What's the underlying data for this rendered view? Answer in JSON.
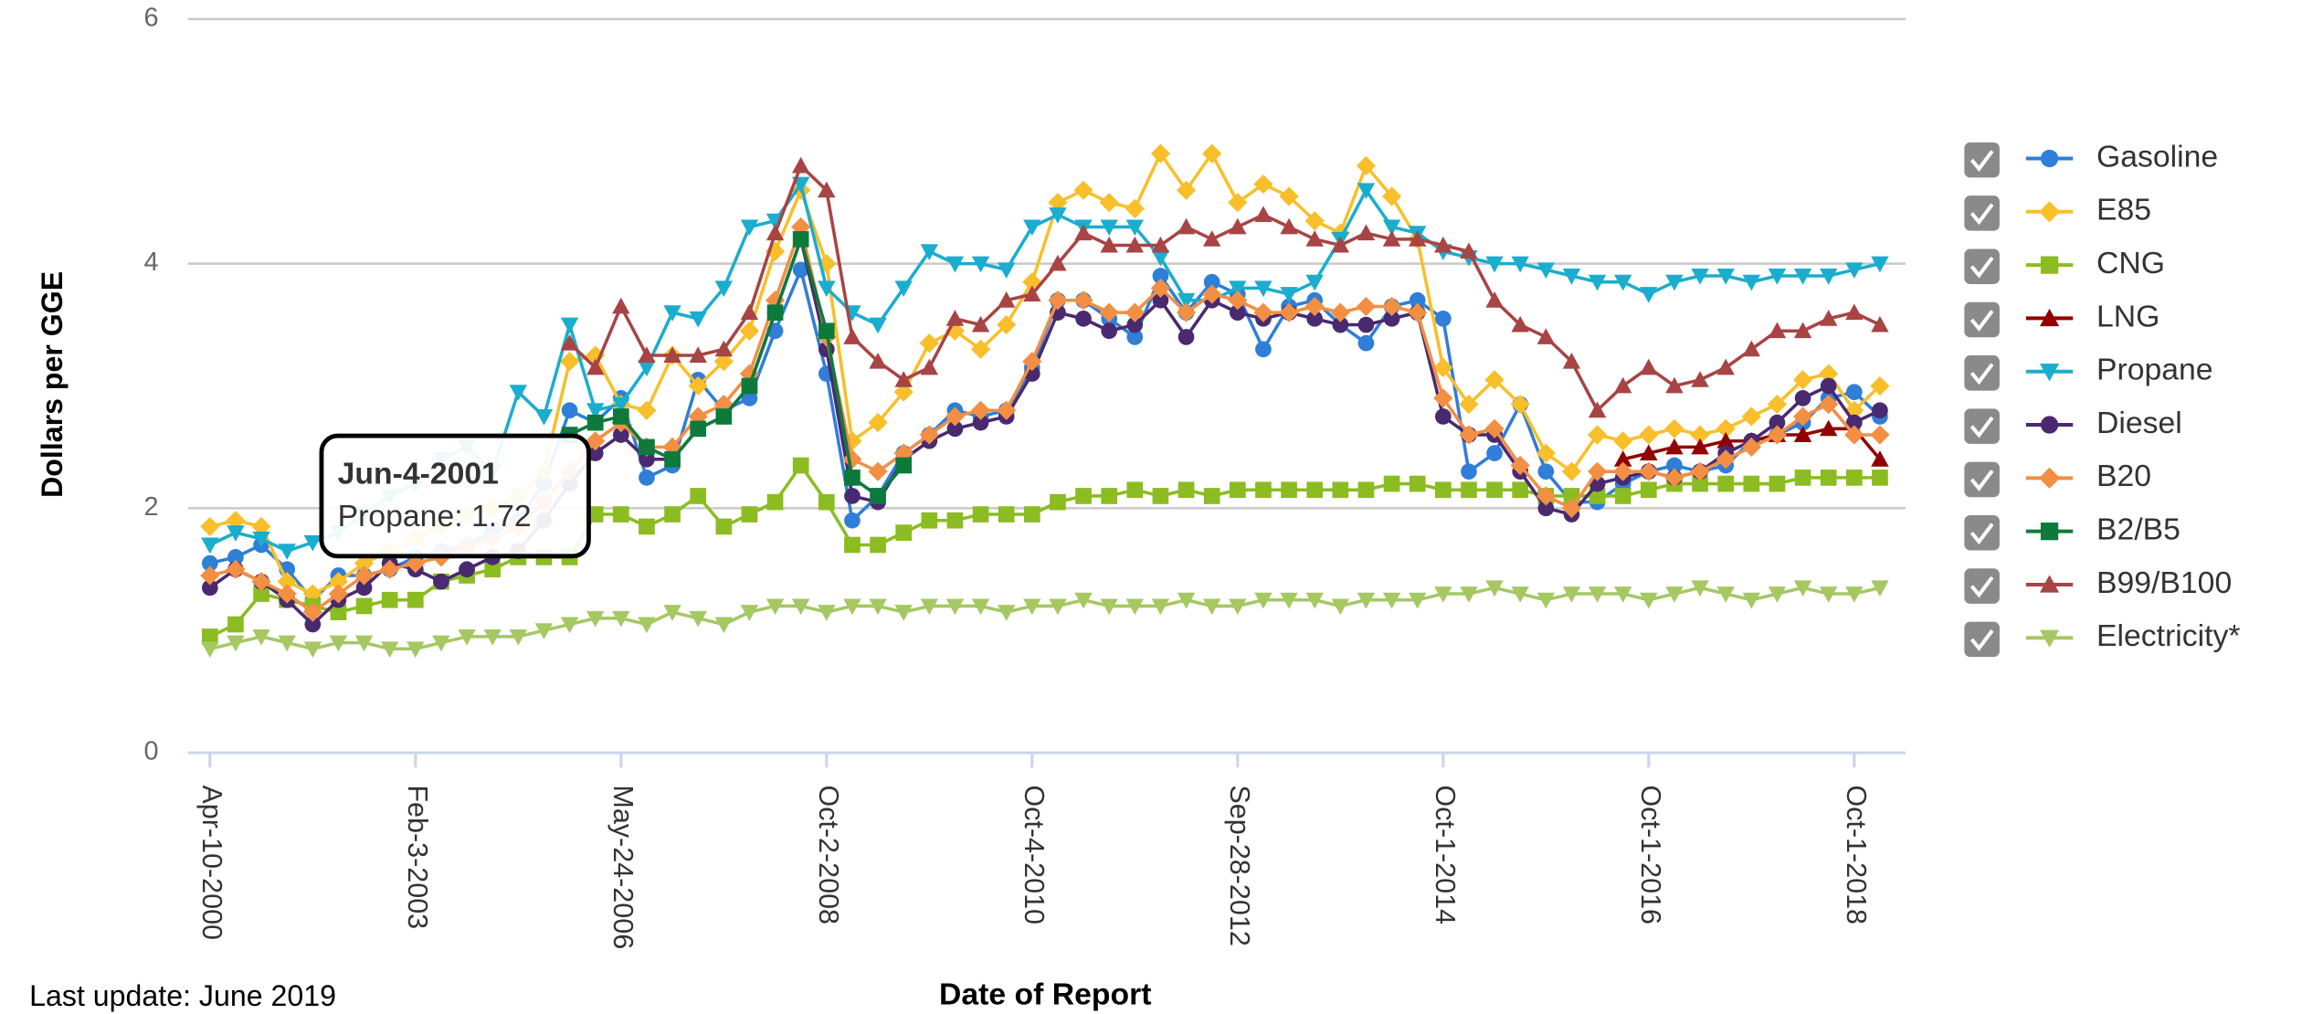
{
  "chart_data": {
    "type": "line",
    "y_label": "Dollars per GGE",
    "x_label": "Date of Report",
    "footnote": "Last update: June 2019",
    "tooltip": {
      "title": "Jun-4-2001",
      "text": "Propane: 1.72"
    },
    "ylim": [
      0,
      6
    ],
    "yticks": [
      0,
      2,
      4,
      6
    ],
    "grid": true,
    "legend": "right",
    "categories": [
      "Apr-10-2000",
      null,
      null,
      null,
      null,
      null,
      null,
      null,
      "Feb-3-2003",
      null,
      null,
      null,
      null,
      null,
      null,
      null,
      "May-24-2006",
      null,
      null,
      null,
      null,
      null,
      null,
      null,
      "Oct-2-2008",
      null,
      null,
      null,
      null,
      null,
      null,
      null,
      "Oct-4-2010",
      null,
      null,
      null,
      null,
      null,
      null,
      null,
      "Sep-28-2012",
      null,
      null,
      null,
      null,
      null,
      null,
      null,
      "Oct-1-2014",
      null,
      null,
      null,
      null,
      null,
      null,
      null,
      "Oct-1-2016",
      null,
      null,
      null,
      null,
      null,
      null,
      null,
      "Oct-1-2018",
      null
    ],
    "series": [
      {
        "name": "Gasoline",
        "color": "#2f7ed8",
        "marker": "circle",
        "values": [
          1.55,
          1.6,
          1.7,
          1.5,
          1.25,
          1.45,
          1.45,
          1.5,
          1.6,
          1.65,
          1.7,
          1.8,
          1.9,
          2.2,
          2.8,
          2.7,
          2.9,
          2.25,
          2.35,
          3.05,
          2.8,
          2.9,
          3.45,
          3.95,
          3.1,
          1.9,
          2.1,
          2.45,
          2.6,
          2.8,
          2.75,
          2.8,
          3.15,
          3.7,
          3.7,
          3.55,
          3.4,
          3.9,
          3.6,
          3.85,
          3.75,
          3.3,
          3.65,
          3.7,
          3.5,
          3.35,
          3.65,
          3.7,
          3.55,
          2.3,
          2.45,
          2.85,
          2.3,
          2.05,
          2.05,
          2.2,
          2.3,
          2.35,
          2.3,
          2.35,
          2.55,
          2.6,
          2.7,
          2.9,
          2.95,
          2.75
        ]
      },
      {
        "name": "E85",
        "color": "#f8bf2a",
        "marker": "diamond",
        "values": [
          1.85,
          1.9,
          1.85,
          1.4,
          1.3,
          1.4,
          1.55,
          1.65,
          1.75,
          1.85,
          1.95,
          2.0,
          2.1,
          2.3,
          3.2,
          3.25,
          2.85,
          2.8,
          3.25,
          3.0,
          3.2,
          3.45,
          4.1,
          4.6,
          4.0,
          2.55,
          2.7,
          2.95,
          3.35,
          3.45,
          3.3,
          3.5,
          3.85,
          4.5,
          4.6,
          4.5,
          4.45,
          4.9,
          4.6,
          4.9,
          4.5,
          4.65,
          4.55,
          4.35,
          4.25,
          4.8,
          4.55,
          4.2,
          3.15,
          2.85,
          3.05,
          2.85,
          2.45,
          2.3,
          2.6,
          2.55,
          2.6,
          2.65,
          2.6,
          2.65,
          2.75,
          2.85,
          3.05,
          3.1,
          2.8,
          3.0
        ]
      },
      {
        "name": "CNG",
        "color": "#8bbc21",
        "marker": "square",
        "values": [
          0.95,
          1.05,
          1.3,
          1.25,
          1.2,
          1.15,
          1.2,
          1.25,
          1.25,
          1.4,
          1.45,
          1.5,
          1.6,
          1.6,
          1.6,
          1.95,
          1.95,
          1.85,
          1.95,
          2.1,
          1.85,
          1.95,
          2.05,
          2.35,
          2.05,
          1.7,
          1.7,
          1.8,
          1.9,
          1.9,
          1.95,
          1.95,
          1.95,
          2.05,
          2.1,
          2.1,
          2.15,
          2.1,
          2.15,
          2.1,
          2.15,
          2.15,
          2.15,
          2.15,
          2.15,
          2.15,
          2.2,
          2.2,
          2.15,
          2.15,
          2.15,
          2.15,
          2.1,
          2.1,
          2.1,
          2.1,
          2.15,
          2.2,
          2.2,
          2.2,
          2.2,
          2.2,
          2.25,
          2.25,
          2.25,
          2.25
        ]
      },
      {
        "name": "LNG",
        "color": "#910000",
        "marker": "triangle",
        "values": [
          null,
          null,
          null,
          null,
          null,
          null,
          null,
          null,
          null,
          null,
          null,
          null,
          null,
          null,
          null,
          null,
          null,
          null,
          null,
          null,
          null,
          null,
          null,
          null,
          null,
          null,
          null,
          null,
          null,
          null,
          null,
          null,
          null,
          null,
          null,
          null,
          null,
          null,
          null,
          null,
          null,
          null,
          null,
          null,
          null,
          null,
          null,
          null,
          null,
          null,
          null,
          null,
          null,
          null,
          null,
          2.4,
          2.45,
          2.5,
          2.5,
          2.55,
          2.55,
          2.6,
          2.6,
          2.65,
          2.65,
          2.4
        ]
      },
      {
        "name": "Propane",
        "color": "#1aadce",
        "marker": "triangle-down",
        "values": [
          1.7,
          1.8,
          1.75,
          1.65,
          1.72,
          1.8,
          1.95,
          2.1,
          2.2,
          2.4,
          2.5,
          2.3,
          2.95,
          2.75,
          3.5,
          2.8,
          2.85,
          3.15,
          3.6,
          3.55,
          3.8,
          4.3,
          4.35,
          4.65,
          3.8,
          3.6,
          3.5,
          3.8,
          4.1,
          4.0,
          4.0,
          3.95,
          4.3,
          4.4,
          4.3,
          4.3,
          4.3,
          4.05,
          3.7,
          3.7,
          3.8,
          3.8,
          3.75,
          3.85,
          4.2,
          4.6,
          4.3,
          4.25,
          4.1,
          4.05,
          4.0,
          4.0,
          3.95,
          3.9,
          3.85,
          3.85,
          3.75,
          3.85,
          3.9,
          3.9,
          3.85,
          3.9,
          3.9,
          3.9,
          3.95,
          4.0
        ]
      },
      {
        "name": "Diesel",
        "color": "#492970",
        "marker": "circle",
        "values": [
          1.35,
          1.5,
          1.4,
          1.25,
          1.05,
          1.25,
          1.35,
          1.55,
          1.5,
          1.4,
          1.5,
          1.6,
          1.65,
          1.9,
          2.2,
          2.45,
          2.6,
          2.4,
          2.4,
          2.65,
          2.75,
          3.0,
          3.6,
          4.2,
          3.3,
          2.1,
          2.05,
          2.4,
          2.55,
          2.65,
          2.7,
          2.75,
          3.1,
          3.6,
          3.55,
          3.45,
          3.5,
          3.7,
          3.4,
          3.7,
          3.6,
          3.55,
          3.6,
          3.55,
          3.5,
          3.5,
          3.55,
          3.6,
          2.75,
          2.6,
          2.6,
          2.3,
          2.0,
          1.95,
          2.2,
          2.25,
          2.3,
          2.25,
          2.3,
          2.45,
          2.55,
          2.7,
          2.9,
          3.0,
          2.7,
          2.8
        ]
      },
      {
        "name": "B20",
        "color": "#f28f43",
        "marker": "diamond",
        "values": [
          1.45,
          1.5,
          1.4,
          1.3,
          1.15,
          1.3,
          1.45,
          1.5,
          1.55,
          1.6,
          1.7,
          1.75,
          1.85,
          2.05,
          2.3,
          2.55,
          2.7,
          2.5,
          2.5,
          2.75,
          2.85,
          3.1,
          3.7,
          4.3,
          3.4,
          2.4,
          2.3,
          2.45,
          2.6,
          2.75,
          2.8,
          2.8,
          3.2,
          3.7,
          3.7,
          3.6,
          3.6,
          3.8,
          3.6,
          3.75,
          3.7,
          3.6,
          3.6,
          3.65,
          3.6,
          3.65,
          3.65,
          3.6,
          2.9,
          2.6,
          2.65,
          2.35,
          2.1,
          2.0,
          2.3,
          2.3,
          2.3,
          2.25,
          2.3,
          2.4,
          2.5,
          2.6,
          2.75,
          2.85,
          2.6,
          2.6
        ]
      },
      {
        "name": "B2/B5",
        "color": "#0d7a3c",
        "marker": "square",
        "values": [
          null,
          null,
          null,
          null,
          null,
          null,
          null,
          null,
          null,
          null,
          null,
          null,
          null,
          null,
          2.6,
          2.7,
          2.75,
          2.5,
          2.4,
          2.65,
          2.75,
          3.0,
          3.6,
          4.2,
          3.45,
          2.25,
          2.1,
          2.35,
          null,
          null,
          null,
          null,
          null,
          null,
          null,
          null,
          null,
          null,
          null,
          null,
          null,
          null,
          null,
          null,
          null,
          null,
          null,
          null,
          null,
          null,
          null,
          null,
          null,
          null,
          null,
          null,
          null,
          null,
          null,
          null,
          null,
          null,
          null,
          null,
          null,
          null
        ]
      },
      {
        "name": "B99/B100",
        "color": "#a84444",
        "marker": "triangle",
        "values": [
          null,
          null,
          null,
          null,
          null,
          null,
          null,
          null,
          null,
          null,
          null,
          null,
          null,
          null,
          3.35,
          3.15,
          3.65,
          3.25,
          3.25,
          3.25,
          3.3,
          3.6,
          4.25,
          4.8,
          4.6,
          3.4,
          3.2,
          3.05,
          3.15,
          3.55,
          3.5,
          3.7,
          3.75,
          4.0,
          4.25,
          4.15,
          4.15,
          4.15,
          4.3,
          4.2,
          4.3,
          4.4,
          4.3,
          4.2,
          4.15,
          4.25,
          4.2,
          4.2,
          4.15,
          4.1,
          3.7,
          3.5,
          3.4,
          3.2,
          2.8,
          3.0,
          3.15,
          3.0,
          3.05,
          3.15,
          3.3,
          3.45,
          3.45,
          3.55,
          3.6,
          3.5
        ]
      },
      {
        "name": "Electricity*",
        "color": "#a5c863",
        "marker": "triangle-down",
        "values": [
          0.85,
          0.9,
          0.95,
          0.9,
          0.85,
          0.9,
          0.9,
          0.85,
          0.85,
          0.9,
          0.95,
          0.95,
          0.95,
          1.0,
          1.05,
          1.1,
          1.1,
          1.05,
          1.15,
          1.1,
          1.05,
          1.15,
          1.2,
          1.2,
          1.15,
          1.2,
          1.2,
          1.15,
          1.2,
          1.2,
          1.2,
          1.15,
          1.2,
          1.2,
          1.25,
          1.2,
          1.2,
          1.2,
          1.25,
          1.2,
          1.2,
          1.25,
          1.25,
          1.25,
          1.2,
          1.25,
          1.25,
          1.25,
          1.3,
          1.3,
          1.35,
          1.3,
          1.25,
          1.3,
          1.3,
          1.3,
          1.25,
          1.3,
          1.35,
          1.3,
          1.25,
          1.3,
          1.35,
          1.3,
          1.3,
          1.35
        ]
      }
    ]
  }
}
